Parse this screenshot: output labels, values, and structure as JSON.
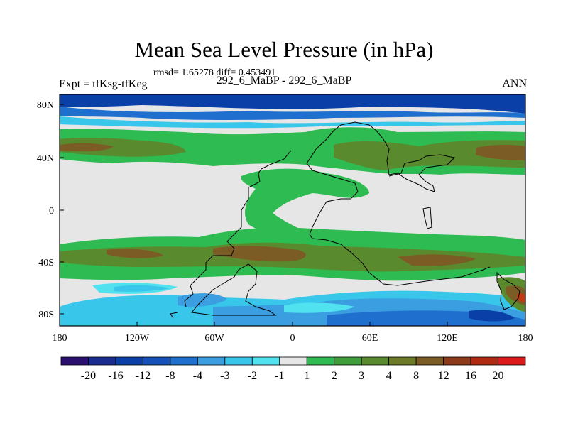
{
  "title": "Mean Sea Level Pressure (in hPa)",
  "stats": "rmsd= 1.65278 diff= 0.453491",
  "label_left": "Expt = tfKsg-tfKeg",
  "label_center": "292_6_MaBP - 292_6_MaBP",
  "label_right": "ANN",
  "colors": {
    "deep_blue": "#0a3fa8",
    "blue": "#1f6fcf",
    "mid_blue": "#3a9ee0",
    "light_blue": "#38c6ea",
    "cyan": "#50e2ef",
    "gray": "#e6e6e6",
    "green": "#2dbb52",
    "olive": "#5a8a2e",
    "brown": "#7a5c24",
    "orange": "#c23a10",
    "red": "#dd1a1a"
  },
  "chart_data": {
    "type": "heatmap",
    "title": "Mean Sea Level Pressure (in hPa)",
    "x_tick_labels": [
      "180",
      "120W",
      "60W",
      "0",
      "60E",
      "120E",
      "180"
    ],
    "y_tick_labels": [
      "80N",
      "40N",
      "0",
      "40S",
      "80S"
    ],
    "xlim": [
      -180,
      180
    ],
    "ylim": [
      -90,
      90
    ],
    "colorbar": {
      "labels": [
        "-20",
        "-16",
        "-12",
        "-8",
        "-4",
        "-3",
        "-2",
        "-1",
        "1",
        "2",
        "3",
        "4",
        "8",
        "12",
        "16",
        "20"
      ],
      "colors": [
        "#2a0f6e",
        "#1a2d8f",
        "#0a3fa8",
        "#1450b8",
        "#1f6fcf",
        "#3a9ee0",
        "#38c6ea",
        "#50e2ef",
        "#e6e6e6",
        "#2dbb52",
        "#3f9e3a",
        "#5a8a2e",
        "#6d7a28",
        "#7a5c24",
        "#8c3a1a",
        "#b02a12",
        "#dd1a1a"
      ]
    }
  }
}
